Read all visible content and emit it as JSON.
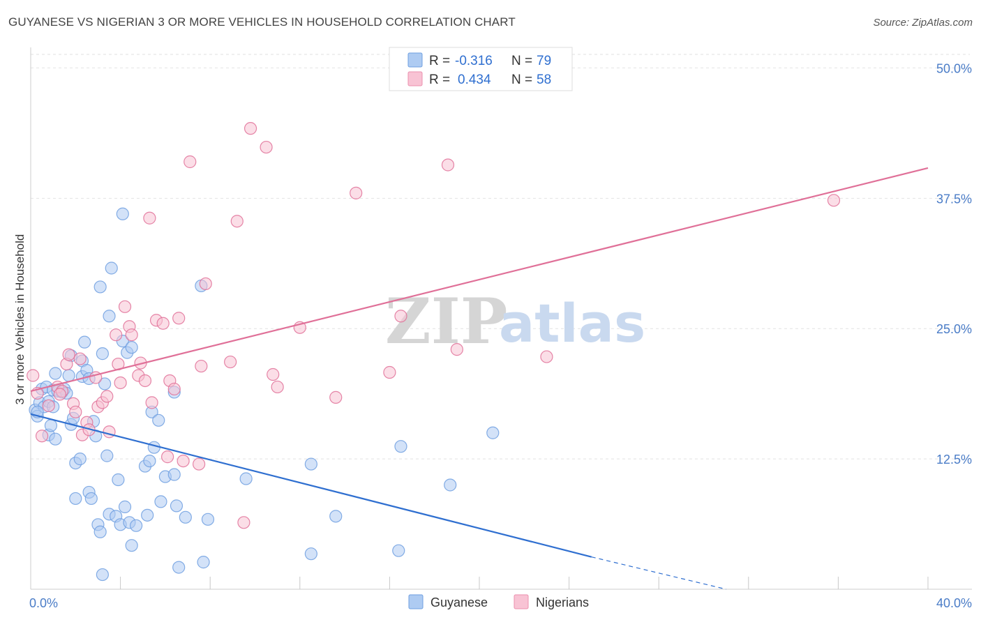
{
  "title": "GUYANESE VS NIGERIAN 3 OR MORE VEHICLES IN HOUSEHOLD CORRELATION CHART",
  "source": "Source: ZipAtlas.com",
  "watermark": {
    "zip": "ZIP",
    "atlas": "atlas"
  },
  "legend": {
    "r_label": "R =",
    "n_label": "N =",
    "rows": [
      {
        "r": "-0.316",
        "n": "79",
        "fill": "#aecbf2",
        "stroke": "#6f9fe0"
      },
      {
        "r": "0.434",
        "n": "58",
        "fill": "#f8c3d4",
        "stroke": "#eb8fae"
      }
    ]
  },
  "bottom_legend": [
    {
      "name": "Guyanese",
      "fill": "#aecbf2",
      "stroke": "#6f9fe0"
    },
    {
      "name": "Nigerians",
      "fill": "#f8c3d4",
      "stroke": "#eb8fae"
    }
  ],
  "chart_data": {
    "type": "scatter",
    "title": "GUYANESE VS NIGERIAN 3 OR MORE VEHICLES IN HOUSEHOLD CORRELATION CHART",
    "xlabel": "",
    "ylabel": "3 or more Vehicles in Household",
    "xlim": [
      0,
      40
    ],
    "ylim": [
      0,
      50
    ],
    "x_tick_labels": [
      "0.0%",
      "40.0%"
    ],
    "y_ticks": [
      12.5,
      25.0,
      37.5,
      50.0
    ],
    "y_tick_labels": [
      "12.5%",
      "25.0%",
      "37.5%",
      "50.0%"
    ],
    "grid": true,
    "legend_position": "top-center",
    "series": [
      {
        "name": "Guyanese",
        "color": "#6f9fe0",
        "fill": "#aecbf2",
        "trend": {
          "x0": 0,
          "y0": 16.8,
          "x1": 25,
          "y1": 3.1,
          "dash_to_x": 31,
          "dash_to_y": 0
        },
        "points": [
          [
            0.2,
            17.2
          ],
          [
            0.3,
            16.6
          ],
          [
            0.4,
            17.9
          ],
          [
            0.5,
            19.2
          ],
          [
            0.6,
            17.5
          ],
          [
            0.7,
            19.4
          ],
          [
            0.8,
            18.0
          ],
          [
            0.8,
            14.8
          ],
          [
            0.9,
            15.7
          ],
          [
            1.0,
            19.1
          ],
          [
            1.1,
            14.4
          ],
          [
            1.1,
            20.7
          ],
          [
            1.2,
            19.0
          ],
          [
            1.4,
            18.9
          ],
          [
            1.5,
            19.2
          ],
          [
            1.6,
            18.8
          ],
          [
            1.7,
            20.5
          ],
          [
            1.8,
            15.8
          ],
          [
            1.8,
            22.4
          ],
          [
            1.9,
            16.4
          ],
          [
            2.0,
            12.1
          ],
          [
            2.0,
            8.7
          ],
          [
            2.2,
            12.5
          ],
          [
            2.3,
            21.9
          ],
          [
            2.3,
            20.4
          ],
          [
            2.4,
            23.7
          ],
          [
            2.5,
            21.0
          ],
          [
            2.6,
            20.2
          ],
          [
            2.6,
            9.3
          ],
          [
            2.7,
            8.7
          ],
          [
            2.8,
            16.1
          ],
          [
            3.0,
            6.2
          ],
          [
            3.1,
            29.0
          ],
          [
            3.1,
            5.5
          ],
          [
            3.2,
            1.4
          ],
          [
            3.2,
            22.6
          ],
          [
            3.3,
            19.7
          ],
          [
            3.4,
            12.8
          ],
          [
            3.5,
            7.2
          ],
          [
            3.5,
            26.2
          ],
          [
            3.6,
            30.8
          ],
          [
            3.8,
            7.0
          ],
          [
            3.9,
            10.5
          ],
          [
            4.0,
            6.2
          ],
          [
            4.1,
            23.8
          ],
          [
            4.1,
            36.0
          ],
          [
            4.2,
            7.9
          ],
          [
            4.3,
            22.7
          ],
          [
            4.4,
            6.4
          ],
          [
            4.5,
            23.2
          ],
          [
            4.5,
            4.2
          ],
          [
            4.7,
            6.1
          ],
          [
            5.1,
            11.8
          ],
          [
            5.2,
            7.1
          ],
          [
            5.3,
            12.3
          ],
          [
            5.4,
            17.0
          ],
          [
            5.5,
            13.6
          ],
          [
            5.7,
            16.2
          ],
          [
            5.8,
            8.4
          ],
          [
            6.0,
            10.8
          ],
          [
            6.4,
            11.0
          ],
          [
            6.5,
            8.0
          ],
          [
            6.6,
            2.1
          ],
          [
            6.9,
            6.9
          ],
          [
            7.6,
            29.1
          ],
          [
            7.7,
            2.6
          ],
          [
            7.9,
            6.7
          ],
          [
            9.6,
            10.6
          ],
          [
            12.5,
            12.0
          ],
          [
            12.5,
            3.4
          ],
          [
            13.6,
            7.0
          ],
          [
            16.4,
            3.7
          ],
          [
            16.5,
            13.7
          ],
          [
            18.7,
            10.0
          ],
          [
            20.6,
            15.0
          ],
          [
            6.4,
            18.9
          ],
          [
            1.0,
            17.5
          ],
          [
            0.3,
            17.0
          ],
          [
            2.9,
            14.7
          ]
        ]
      },
      {
        "name": "Nigerians",
        "color": "#e07098",
        "fill": "#f8c3d4",
        "trend": {
          "x0": 0,
          "y0": 19.0,
          "x1": 40,
          "y1": 40.4
        },
        "points": [
          [
            0.1,
            20.5
          ],
          [
            0.3,
            18.8
          ],
          [
            0.5,
            14.7
          ],
          [
            0.8,
            17.6
          ],
          [
            1.2,
            19.4
          ],
          [
            1.4,
            19.0
          ],
          [
            1.6,
            21.6
          ],
          [
            1.7,
            22.5
          ],
          [
            1.9,
            17.8
          ],
          [
            2.2,
            22.1
          ],
          [
            2.3,
            14.8
          ],
          [
            2.5,
            16.0
          ],
          [
            2.6,
            15.3
          ],
          [
            2.9,
            20.3
          ],
          [
            3.0,
            17.5
          ],
          [
            3.2,
            17.9
          ],
          [
            3.4,
            18.5
          ],
          [
            3.5,
            15.1
          ],
          [
            3.8,
            24.4
          ],
          [
            3.9,
            21.6
          ],
          [
            4.0,
            19.8
          ],
          [
            4.2,
            27.1
          ],
          [
            4.4,
            25.2
          ],
          [
            4.5,
            24.4
          ],
          [
            4.8,
            20.5
          ],
          [
            4.9,
            21.7
          ],
          [
            5.1,
            20.0
          ],
          [
            5.3,
            35.6
          ],
          [
            5.4,
            17.9
          ],
          [
            5.6,
            25.8
          ],
          [
            5.9,
            25.5
          ],
          [
            6.1,
            12.7
          ],
          [
            6.2,
            20.0
          ],
          [
            6.4,
            19.2
          ],
          [
            6.6,
            26.0
          ],
          [
            6.8,
            12.3
          ],
          [
            7.5,
            12.0
          ],
          [
            7.6,
            21.4
          ],
          [
            7.8,
            29.3
          ],
          [
            7.1,
            41.0
          ],
          [
            8.9,
            21.8
          ],
          [
            9.2,
            35.3
          ],
          [
            9.5,
            6.4
          ],
          [
            9.8,
            44.2
          ],
          [
            10.5,
            42.4
          ],
          [
            10.8,
            20.6
          ],
          [
            11.0,
            19.4
          ],
          [
            12.0,
            25.1
          ],
          [
            13.6,
            18.4
          ],
          [
            14.5,
            38.0
          ],
          [
            16.0,
            20.8
          ],
          [
            16.5,
            26.2
          ],
          [
            18.6,
            40.7
          ],
          [
            19.0,
            23.0
          ],
          [
            23.0,
            22.3
          ],
          [
            35.8,
            37.3
          ],
          [
            2.0,
            17.0
          ],
          [
            1.3,
            18.7
          ]
        ]
      }
    ]
  }
}
